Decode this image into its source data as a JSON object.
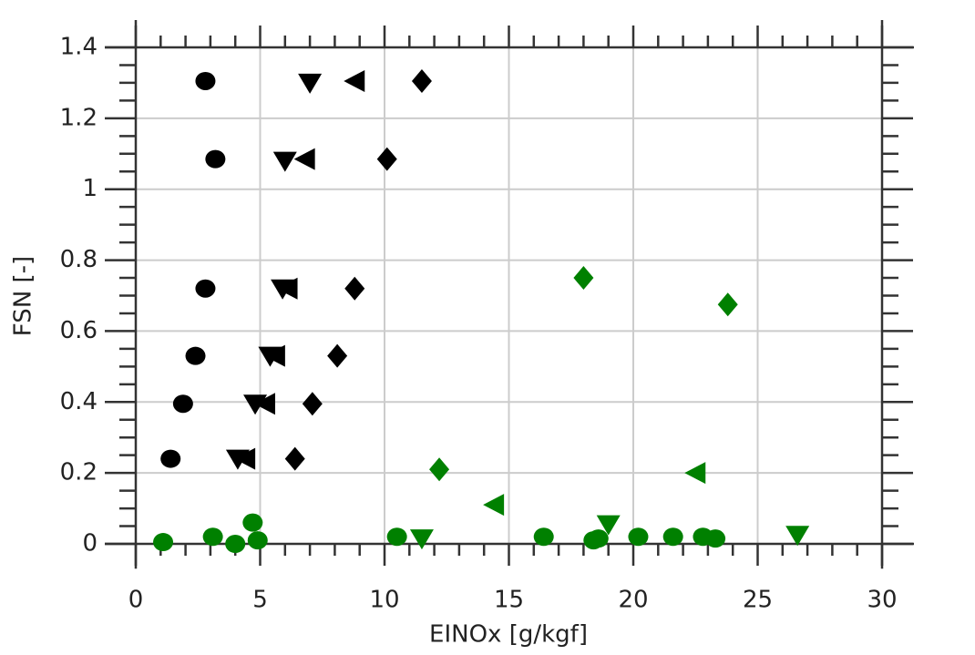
{
  "chart_data": {
    "type": "scatter",
    "xlabel": "EINOx [g/kgf]",
    "ylabel": "FSN [-]",
    "xlim": [
      0,
      30
    ],
    "xticks": [
      0,
      5,
      10,
      15,
      20,
      25,
      30
    ],
    "ylim": [
      -0.07,
      1.4
    ],
    "yticks": [
      0,
      0.2,
      0.4,
      0.6,
      0.8,
      1,
      1.2,
      1.4
    ],
    "grid": true,
    "series": [
      {
        "color": "#000000",
        "marker": "circle",
        "x": [
          2.8,
          3.2,
          2.8,
          2.4,
          1.9,
          1.4
        ],
        "values": [
          1.305,
          1.085,
          0.72,
          0.53,
          0.395,
          0.24
        ]
      },
      {
        "color": "#000000",
        "marker": "triangle-down",
        "x": [
          7.0,
          6.0,
          5.9,
          5.4,
          4.8,
          4.1
        ],
        "values": [
          1.3,
          1.08,
          0.72,
          0.53,
          0.395,
          0.24
        ]
      },
      {
        "color": "#000000",
        "marker": "triangle-left",
        "x": [
          8.8,
          6.8,
          6.1,
          5.6,
          5.2,
          4.4
        ],
        "values": [
          1.305,
          1.085,
          0.72,
          0.53,
          0.395,
          0.24
        ]
      },
      {
        "color": "#000000",
        "marker": "diamond",
        "x": [
          11.5,
          10.1,
          8.8,
          8.1,
          7.1,
          6.4
        ],
        "values": [
          1.305,
          1.085,
          0.72,
          0.53,
          0.395,
          0.24
        ]
      },
      {
        "color": "#008000",
        "marker": "circle",
        "x": [
          1.1,
          3.1,
          4.0,
          4.7,
          4.9,
          10.5,
          16.4,
          18.4,
          18.6,
          20.2,
          21.6,
          22.8,
          23.3
        ],
        "values": [
          0.005,
          0.02,
          0.0,
          0.06,
          0.01,
          0.02,
          0.02,
          0.01,
          0.015,
          0.02,
          0.02,
          0.02,
          0.015
        ]
      },
      {
        "color": "#008000",
        "marker": "triangle-down",
        "x": [
          11.5,
          19.0,
          26.6
        ],
        "values": [
          0.015,
          0.055,
          0.025
        ]
      },
      {
        "color": "#008000",
        "marker": "triangle-left",
        "x": [
          14.4,
          22.5
        ],
        "values": [
          0.11,
          0.2
        ]
      },
      {
        "color": "#008000",
        "marker": "diamond",
        "x": [
          12.2,
          18.0,
          23.8
        ],
        "values": [
          0.21,
          0.75,
          0.675
        ]
      }
    ]
  }
}
